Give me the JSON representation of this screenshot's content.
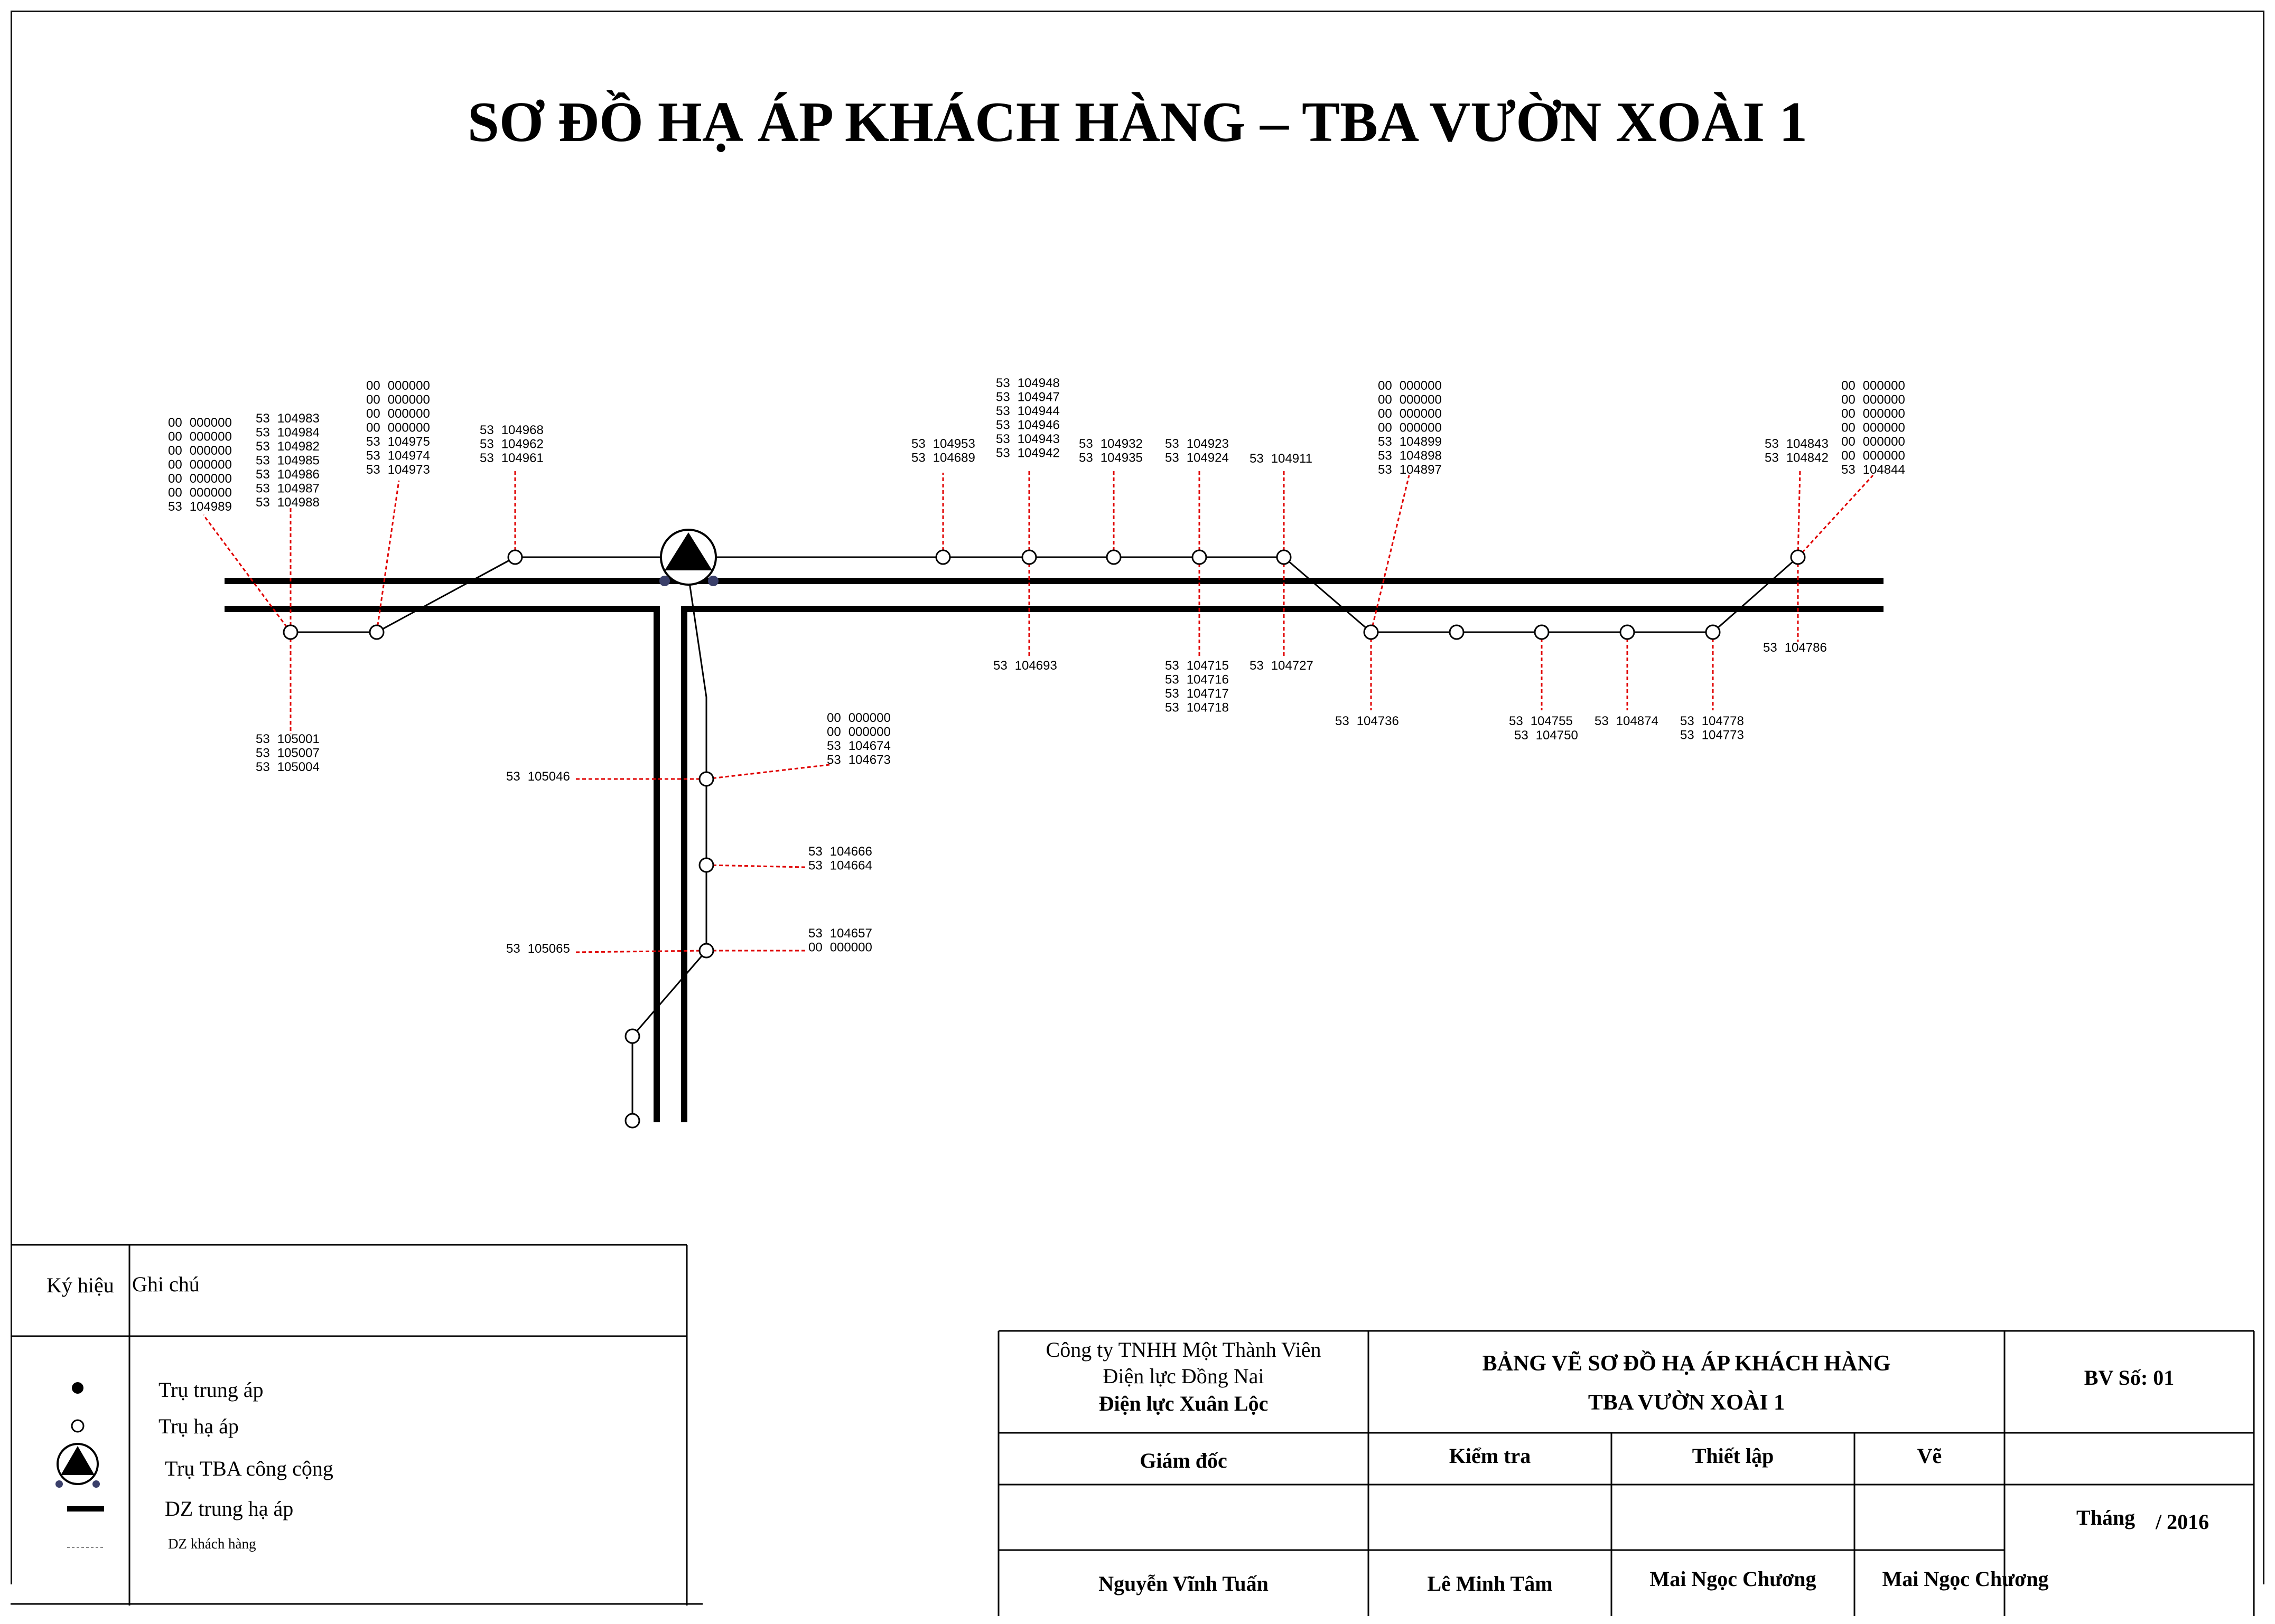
{
  "title": "SƠ ĐỒ HẠ ÁP KHÁCH HÀNG – TBA VƯỜN XOÀI 1",
  "colors": {
    "line": "#000000",
    "customer_line": "#e00000",
    "tba_dot": "#3a3f6a"
  },
  "customer_labels": {
    "g1": [
      [
        "00",
        "000000"
      ],
      [
        "00",
        "000000"
      ],
      [
        "00",
        "000000"
      ],
      [
        "00",
        "000000"
      ],
      [
        "00",
        "000000"
      ],
      [
        "00",
        "000000"
      ],
      [
        "53",
        "104989"
      ]
    ],
    "g2": [
      [
        "53",
        "104983"
      ],
      [
        "53",
        "104984"
      ],
      [
        "53",
        "104982"
      ],
      [
        "53",
        "104985"
      ],
      [
        "53",
        "104986"
      ],
      [
        "53",
        "104987"
      ],
      [
        "53",
        "104988"
      ]
    ],
    "g3": [
      [
        "00",
        "000000"
      ],
      [
        "00",
        "000000"
      ],
      [
        "00",
        "000000"
      ],
      [
        "00",
        "000000"
      ],
      [
        "53",
        "104975"
      ],
      [
        "53",
        "104974"
      ],
      [
        "53",
        "104973"
      ]
    ],
    "g4": [
      [
        "53",
        "104968"
      ],
      [
        "53",
        "104962"
      ],
      [
        "53",
        "104961"
      ]
    ],
    "g5": [
      [
        "53",
        "104953"
      ],
      [
        "53",
        "104689"
      ]
    ],
    "g6": [
      [
        "53",
        "104948"
      ],
      [
        "53",
        "104947"
      ],
      [
        "53",
        "104944"
      ],
      [
        "53",
        "104946"
      ],
      [
        "53",
        "104943"
      ],
      [
        "53",
        "104942"
      ]
    ],
    "g7": [
      [
        "53",
        "104932"
      ],
      [
        "53",
        "104935"
      ]
    ],
    "g8": [
      [
        "53",
        "104923"
      ],
      [
        "53",
        "104924"
      ]
    ],
    "g9": [
      [
        "53",
        "104911"
      ]
    ],
    "g10": [
      [
        "00",
        "000000"
      ],
      [
        "00",
        "000000"
      ],
      [
        "00",
        "000000"
      ],
      [
        "00",
        "000000"
      ],
      [
        "53",
        "104899"
      ],
      [
        "53",
        "104898"
      ],
      [
        "53",
        "104897"
      ]
    ],
    "g11": [
      [
        "53",
        "104843"
      ],
      [
        "53",
        "104842"
      ]
    ],
    "g12": [
      [
        "00",
        "000000"
      ],
      [
        "00",
        "000000"
      ],
      [
        "00",
        "000000"
      ],
      [
        "00",
        "000000"
      ],
      [
        "00",
        "000000"
      ],
      [
        "00",
        "000000"
      ],
      [
        "53",
        "104844"
      ]
    ],
    "g13": [
      [
        "53",
        "105001"
      ],
      [
        "53",
        "105007"
      ],
      [
        "53",
        "105004"
      ]
    ],
    "g14": [
      [
        "53",
        "104693"
      ]
    ],
    "g15": [
      [
        "53",
        "104715"
      ],
      [
        "53",
        "104716"
      ],
      [
        "53",
        "104717"
      ],
      [
        "53",
        "104718"
      ]
    ],
    "g16": [
      [
        "53",
        "104727"
      ]
    ],
    "g17": [
      [
        "53",
        "104736"
      ]
    ],
    "g18": [
      [
        "53",
        "104755"
      ]
    ],
    "g18b": [
      [
        "53",
        "104750"
      ]
    ],
    "g19": [
      [
        "53",
        "104874"
      ]
    ],
    "g20": [
      [
        "53",
        "104778"
      ],
      [
        "53",
        "104773"
      ]
    ],
    "g21": [
      [
        "53",
        "104786"
      ]
    ],
    "g22": [
      [
        "00",
        "000000"
      ],
      [
        "00",
        "000000"
      ],
      [
        "53",
        "104674"
      ],
      [
        "53",
        "104673"
      ]
    ],
    "g23": [
      [
        "53",
        "105046"
      ]
    ],
    "g24": [
      [
        "53",
        "104666"
      ],
      [
        "53",
        "104664"
      ]
    ],
    "g25": [
      [
        "53",
        "104657"
      ],
      [
        "00",
        "000000"
      ]
    ],
    "g26": [
      [
        "53",
        "105065"
      ]
    ]
  },
  "legend": {
    "header_symbol": "Ký hiệu",
    "header_note": "Ghi chú",
    "items": [
      "Trụ trung áp",
      "Trụ hạ áp",
      "Trụ TBA công cộng",
      "DZ trung hạ áp",
      "DZ khách hàng"
    ]
  },
  "title_block": {
    "company_line1": "Công ty TNHH Một Thành Viên",
    "company_line2": "Điện lực Đồng Nai",
    "company_line3": "Điện lực Xuân Lộc",
    "drawing_title1": "BẢNG VẼ SƠ ĐỒ HẠ ÁP KHÁCH HÀNG",
    "drawing_title2": "TBA VƯỜN XOÀI 1",
    "drawing_no": "BV Số: 01",
    "roles": [
      "Giám đốc",
      "Kiểm tra",
      "Thiết lập",
      "Vẽ"
    ],
    "names": [
      "Nguyễn Vĩnh Tuấn",
      "Lê Minh Tâm",
      "Mai Ngọc Chương",
      "Mai Ngọc Chương"
    ],
    "month_label": "Tháng",
    "year": "/ 2016"
  }
}
